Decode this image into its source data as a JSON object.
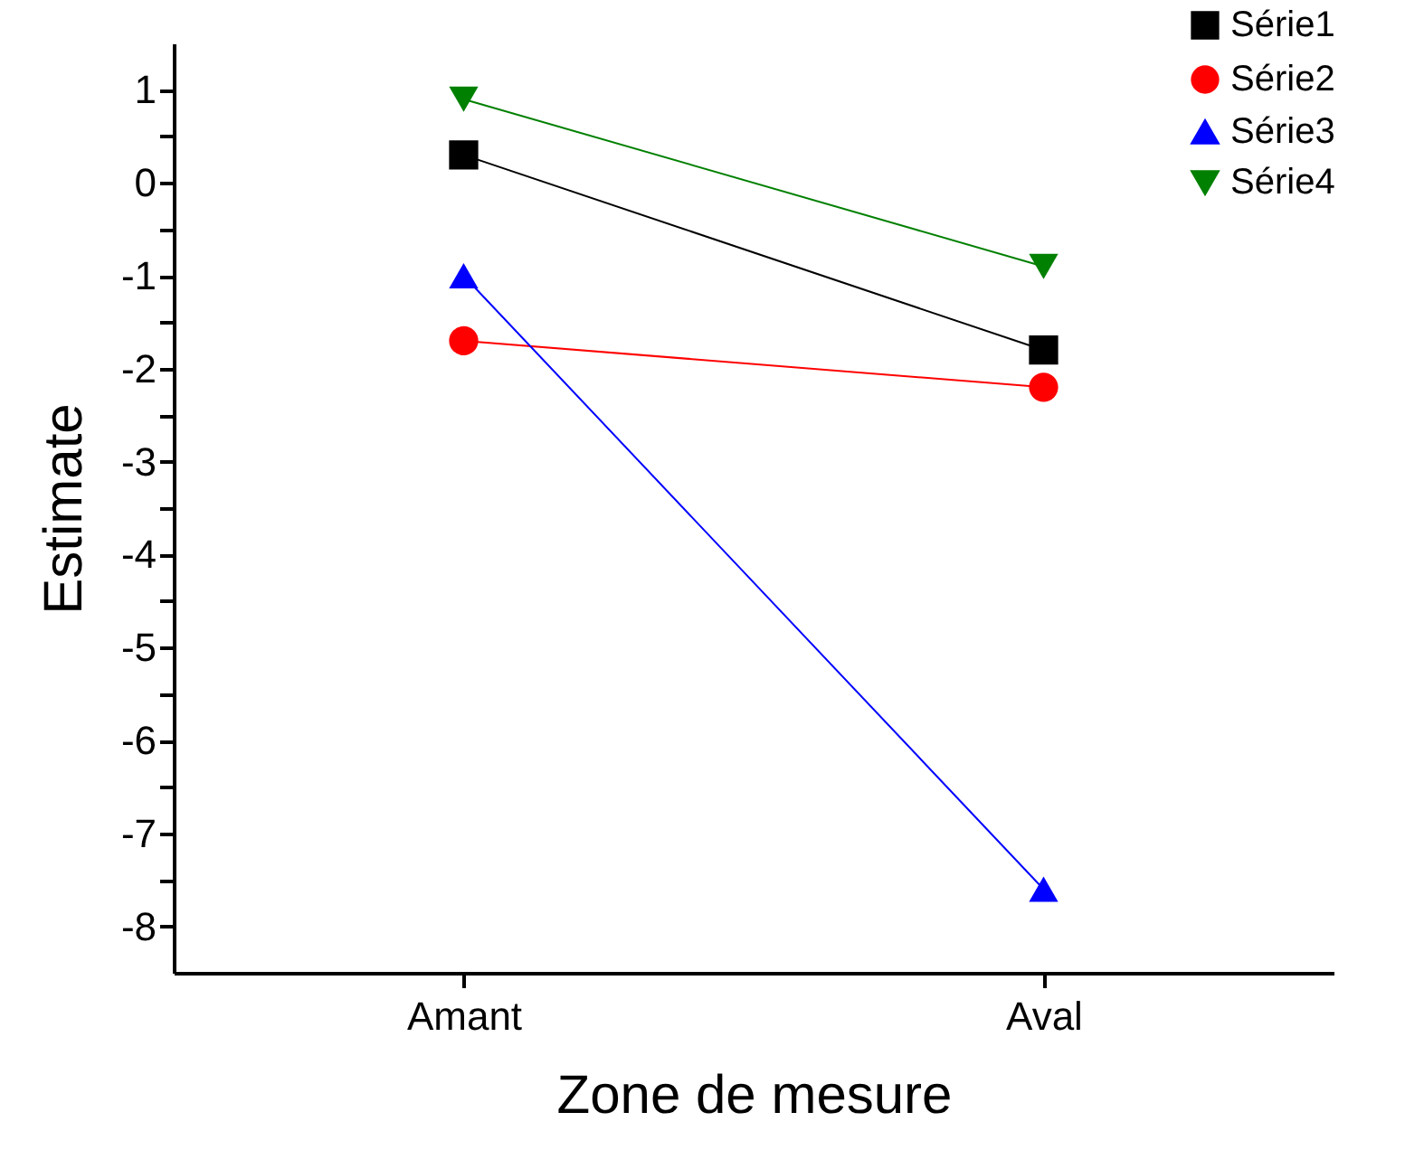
{
  "chart_data": {
    "type": "line",
    "xlabel": "Zone de mesure",
    "ylabel": "Estimate",
    "categories": [
      "Amant",
      "Aval"
    ],
    "series": [
      {
        "name": "Série1",
        "color": "#000000",
        "marker": "square",
        "values": [
          0.3,
          -1.8
        ]
      },
      {
        "name": "Série2",
        "color": "#ff0000",
        "marker": "circle",
        "values": [
          -1.7,
          -2.2
        ]
      },
      {
        "name": "Série3",
        "color": "#0000ff",
        "marker": "triangle",
        "values": [
          -1.0,
          -7.6
        ]
      },
      {
        "name": "Série4",
        "color": "#008000",
        "marker": "triangle-down",
        "values": [
          0.9,
          -0.9
        ]
      }
    ],
    "ylim": [
      -8.5,
      1.5
    ],
    "yticks": [
      -8,
      {
        "value": -7.5,
        "label": null
      },
      -7,
      {
        "value": -6.5,
        "label": null
      },
      -6,
      {
        "value": -5.5,
        "label": null
      },
      -5,
      {
        "value": -4.5,
        "label": null
      },
      -4,
      {
        "value": -3.5,
        "label": null
      },
      -3,
      {
        "value": -2.5,
        "label": null
      },
      -2,
      {
        "value": -1.5,
        "label": null
      },
      -1,
      {
        "value": -0.5,
        "label": null
      },
      0,
      {
        "value": 0.5,
        "label": null
      },
      1
    ],
    "grid": false,
    "legend": "top right",
    "line_style": "solid"
  }
}
